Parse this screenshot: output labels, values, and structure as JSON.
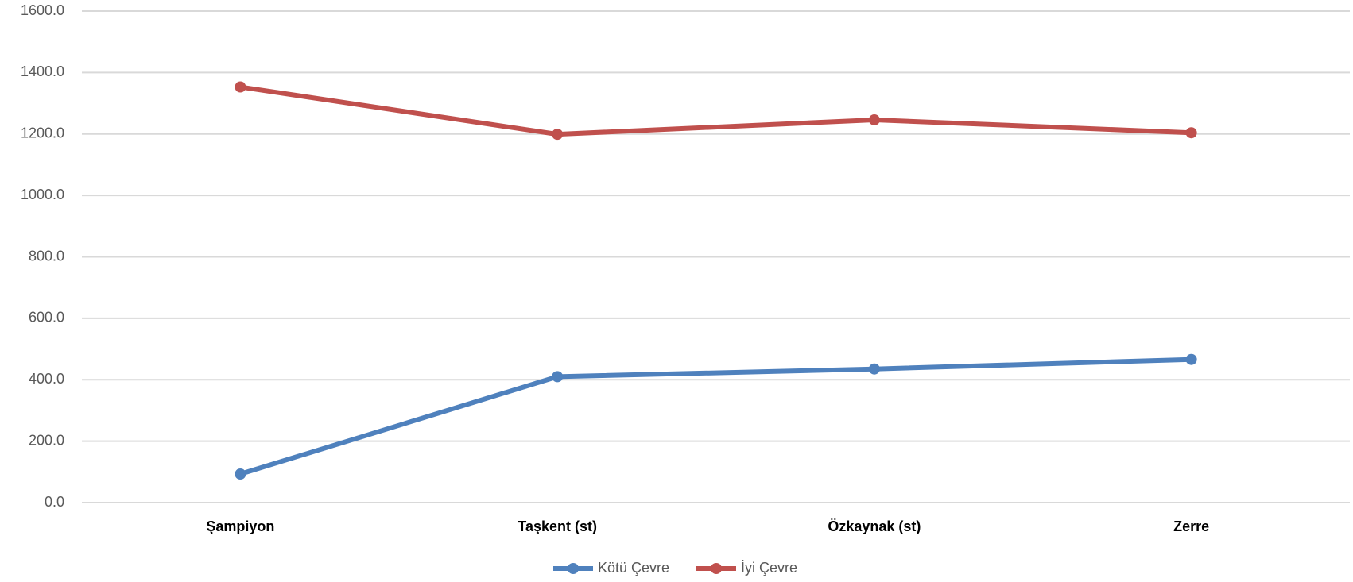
{
  "chart_data": {
    "type": "line",
    "categories": [
      "Şampiyon",
      "Taşkent (st)",
      "Özkaynak (st)",
      "Zerre"
    ],
    "series": [
      {
        "name": "Kötü Çevre",
        "color": "#4f81bd",
        "values": [
          93,
          410,
          435,
          466
        ]
      },
      {
        "name": "İyi Çevre",
        "color": "#c0504d",
        "values": [
          1353,
          1199,
          1246,
          1204
        ]
      }
    ],
    "ylim": [
      0,
      1600
    ],
    "yticks": [
      {
        "value": 0,
        "label": "0.0"
      },
      {
        "value": 200,
        "label": "200.0"
      },
      {
        "value": 400,
        "label": "400.0"
      },
      {
        "value": 600,
        "label": "600.0"
      },
      {
        "value": 800,
        "label": "800.0"
      },
      {
        "value": 1000,
        "label": "1000.0"
      },
      {
        "value": 1200,
        "label": "1200.0"
      },
      {
        "value": 1400,
        "label": "1400.0"
      },
      {
        "value": 1600,
        "label": "1600.0"
      }
    ],
    "grid": true,
    "legend": "bottom"
  }
}
